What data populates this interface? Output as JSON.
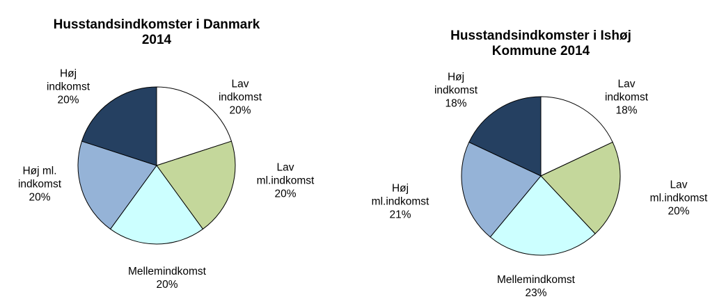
{
  "chart_data": [
    {
      "type": "pie",
      "title": "Husstandsindkomster i Danmark\n2014",
      "categories": [
        "Lav\nindkomst",
        "Lav\nml.indkomst",
        "Mellemindkomst",
        "Høj ml.\nindkomst",
        "Høj\nindkomst"
      ],
      "values": [
        20,
        20,
        20,
        20,
        20
      ],
      "value_labels": [
        "20%",
        "20%",
        "20%",
        "20%",
        "20%"
      ],
      "colors": [
        "#ffffff",
        "#c4d79b",
        "#ccffff",
        "#95b3d7",
        "#254061"
      ]
    },
    {
      "type": "pie",
      "title": "Husstandsindkomster i Ishøj\nKommune  2014",
      "categories": [
        "Lav\nindkomst",
        "Lav\nml.indkomst",
        "Mellemindkomst",
        "Høj\nml.indkomst",
        "Høj\nindkomst"
      ],
      "values": [
        18,
        20,
        23,
        21,
        18
      ],
      "value_labels": [
        "18%",
        "20%",
        "23%",
        "21%",
        "18%"
      ],
      "colors": [
        "#ffffff",
        "#c4d79b",
        "#ccffff",
        "#95b3d7",
        "#254061"
      ]
    }
  ]
}
